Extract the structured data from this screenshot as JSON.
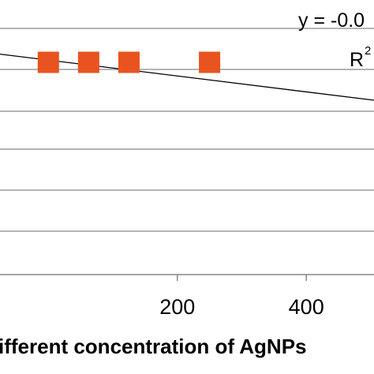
{
  "chart_data": {
    "type": "scatter",
    "title": "",
    "xlabel": "ifferent concentration of AgNPs",
    "ylabel": "",
    "xlim": [
      -75,
      505
    ],
    "xticks": [
      200,
      400
    ],
    "grid": "horizontal",
    "legend": "none",
    "series": [
      {
        "marker": "square",
        "color": "#E8531F",
        "points": [
          {
            "x": 0,
            "y": 0.965
          },
          {
            "x": 62.5,
            "y": 0.965
          },
          {
            "x": 125,
            "y": 0.965
          },
          {
            "x": 250,
            "y": 0.965
          }
        ]
      }
    ],
    "trendline": {
      "type": "linear",
      "from": {
        "x": -75,
        "y": 1.005
      },
      "to": {
        "x": 505,
        "y": 0.78
      }
    },
    "annotations": {
      "equation": "y = -0.0",
      "r_squared_prefix": "R",
      "r_squared_superscript": "2"
    }
  }
}
